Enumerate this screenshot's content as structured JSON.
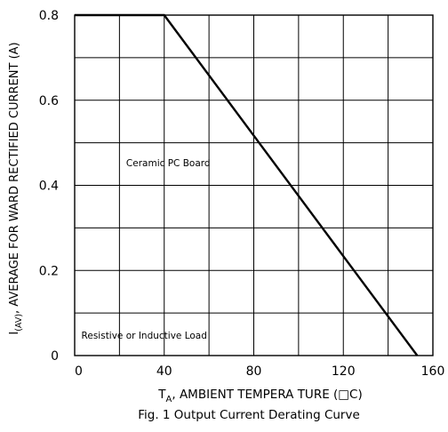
{
  "chart_data": {
    "type": "line",
    "title": "",
    "caption": "Fig. 1  Output Current Derating Curve",
    "xlabel": {
      "prefix": "T",
      "subscript": "A",
      "rest": ", AMBIENT   TEMPERA  TURE   (□C)"
    },
    "ylabel": {
      "prefix": "I",
      "subscript": "(AV)",
      "rest": ", AVERAGE   FOR WARD  RECTIFIED   CURRENT   (A)"
    },
    "xlim": [
      0,
      160
    ],
    "ylim": [
      0,
      0.8
    ],
    "x_ticks": [
      0,
      40,
      80,
      120,
      160
    ],
    "x_tick_labels": [
      "0",
      "40",
      "80",
      "120",
      "160"
    ],
    "y_ticks": [
      0,
      0.2,
      0.4,
      0.6,
      0.8
    ],
    "y_tick_labels": [
      "0",
      "0.2",
      "0.4",
      "0.6",
      "0.8"
    ],
    "x_grid_step": 20,
    "y_grid_step": 0.1,
    "grid": true,
    "series": [
      {
        "x": [
          0,
          40,
          153
        ],
        "y": [
          0.8,
          0.8,
          0
        ]
      }
    ],
    "annotations": [
      {
        "text": "Ceramic  PC  Board",
        "x": 23,
        "y": 0.445
      },
      {
        "text": "Resistive   or Inductive Load",
        "x": 3,
        "y": 0.04
      }
    ],
    "line_color": "#000000",
    "grid_color": "#000000"
  }
}
